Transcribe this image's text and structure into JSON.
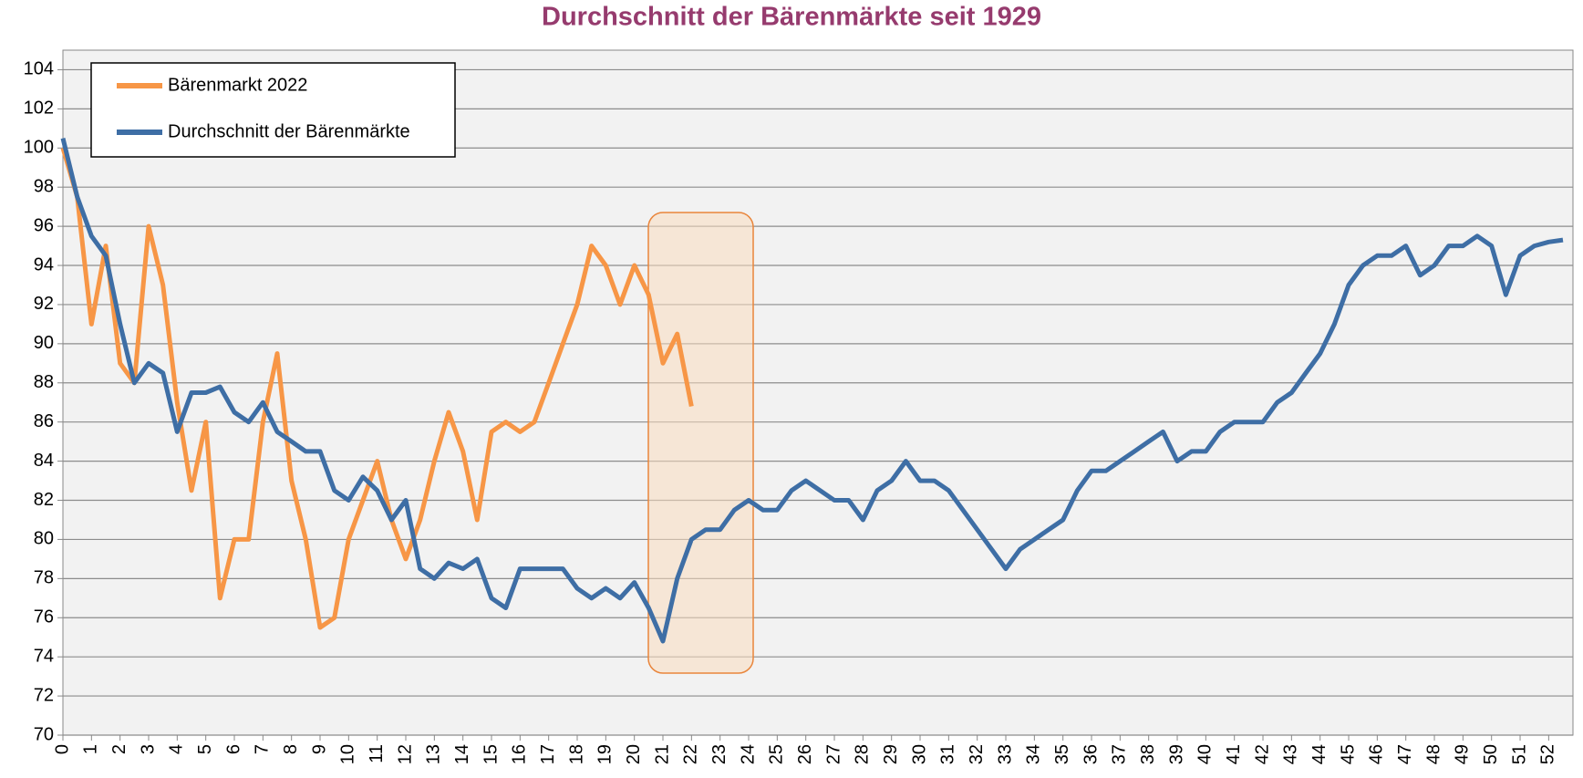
{
  "chart_data": {
    "type": "line",
    "title": "Durchschnitt der Bärenmärkte seit 1929",
    "x": [
      0,
      0.5,
      1,
      1.5,
      2,
      2.5,
      3,
      3.5,
      4,
      4.5,
      5,
      5.5,
      6,
      6.5,
      7,
      7.5,
      8,
      8.5,
      9,
      9.5,
      10,
      10.5,
      11,
      11.5,
      12,
      12.5,
      13,
      13.5,
      14,
      14.5,
      15,
      15.5,
      16,
      16.5,
      17,
      17.5,
      18,
      18.5,
      19,
      19.5,
      20,
      20.5,
      21,
      21.5,
      22,
      22.5,
      23,
      23.5,
      24,
      24.5,
      25,
      25.5,
      26,
      26.5,
      27,
      27.5,
      28,
      28.5,
      29,
      29.5,
      30,
      30.5,
      31,
      31.5,
      32,
      32.5,
      33,
      33.5,
      34,
      34.5,
      35,
      35.5,
      36,
      36.5,
      37,
      37.5,
      38,
      38.5,
      39,
      39.5,
      40,
      40.5,
      41,
      41.5,
      42,
      42.5,
      43,
      43.5,
      44,
      44.5,
      45,
      45.5,
      46,
      46.5,
      47,
      47.5,
      48,
      48.5,
      49,
      49.5,
      50,
      50.5,
      51,
      51.5,
      52,
      52.5
    ],
    "series": [
      {
        "name": "Bärenmarkt 2022",
        "color": "#f79646",
        "values": [
          100,
          97.5,
          91,
          95,
          89,
          88,
          96,
          93,
          87,
          82.5,
          86,
          77,
          80,
          80,
          86,
          89.5,
          83,
          80,
          75.5,
          76,
          80,
          82,
          84,
          81,
          79,
          81,
          84,
          86.5,
          84.5,
          81,
          85.5,
          86,
          85.5,
          86,
          88,
          90,
          92,
          95,
          94,
          92,
          94,
          92.5,
          89,
          90.5,
          86.8,
          null,
          null,
          null,
          null,
          null,
          null,
          null,
          null,
          null,
          null,
          null,
          null,
          null,
          null,
          null,
          null,
          null,
          null,
          null,
          null,
          null,
          null,
          null,
          null,
          null,
          null,
          null,
          null,
          null,
          null,
          null,
          null,
          null,
          null,
          null,
          null,
          null,
          null,
          null,
          null,
          null,
          null,
          null,
          null,
          null,
          null,
          null,
          null,
          null,
          null,
          null,
          null,
          null,
          null,
          null,
          null,
          null,
          null,
          null,
          null,
          null
        ]
      },
      {
        "name": "Durchschnitt der Bärenmärkte",
        "color": "#3e6ea5",
        "values": [
          100.5,
          97.5,
          95.5,
          94.5,
          91,
          88,
          89,
          88.5,
          85.5,
          87.5,
          87.5,
          87.8,
          86.5,
          86,
          87,
          85.5,
          85,
          84.5,
          84.5,
          82.5,
          82,
          83.2,
          82.5,
          81,
          82,
          78.5,
          78,
          78.8,
          78.5,
          79,
          77,
          76.5,
          78.5,
          78.5,
          78.5,
          78.5,
          77.5,
          77,
          77.5,
          77,
          77.8,
          76.5,
          74.8,
          78,
          80,
          80.5,
          80.5,
          81.5,
          82,
          81.5,
          81.5,
          82.5,
          83,
          82.5,
          82,
          82,
          81,
          82.5,
          83,
          84,
          83,
          83,
          82.5,
          81.5,
          80.5,
          79.5,
          78.5,
          79.5,
          80,
          80.5,
          81,
          82.5,
          83.5,
          83.5,
          84,
          84.5,
          85,
          85.5,
          84,
          84.5,
          84.5,
          85.5,
          86,
          86,
          86,
          87,
          87.5,
          88.5,
          89.5,
          91,
          93,
          94,
          94.5,
          94.5,
          95,
          93.5,
          94,
          95,
          95,
          95.5,
          95,
          92.5,
          94.5,
          95,
          95.2,
          95.3
        ]
      }
    ],
    "xlim": [
      0,
      52.85
    ],
    "xticks": [
      0,
      1,
      2,
      3,
      4,
      5,
      6,
      7,
      8,
      9,
      10,
      11,
      12,
      13,
      14,
      15,
      16,
      17,
      18,
      19,
      20,
      21,
      22,
      23,
      24,
      25,
      26,
      27,
      28,
      29,
      30,
      31,
      32,
      33,
      34,
      35,
      36,
      37,
      38,
      39,
      40,
      41,
      42,
      43,
      44,
      45,
      46,
      47,
      48,
      49,
      50,
      51,
      52
    ],
    "ylim": [
      70,
      105
    ],
    "yticks": [
      70,
      72,
      74,
      76,
      78,
      80,
      82,
      84,
      86,
      88,
      90,
      92,
      94,
      96,
      98,
      100,
      102,
      104
    ],
    "grid": true,
    "legend": "upper left"
  }
}
